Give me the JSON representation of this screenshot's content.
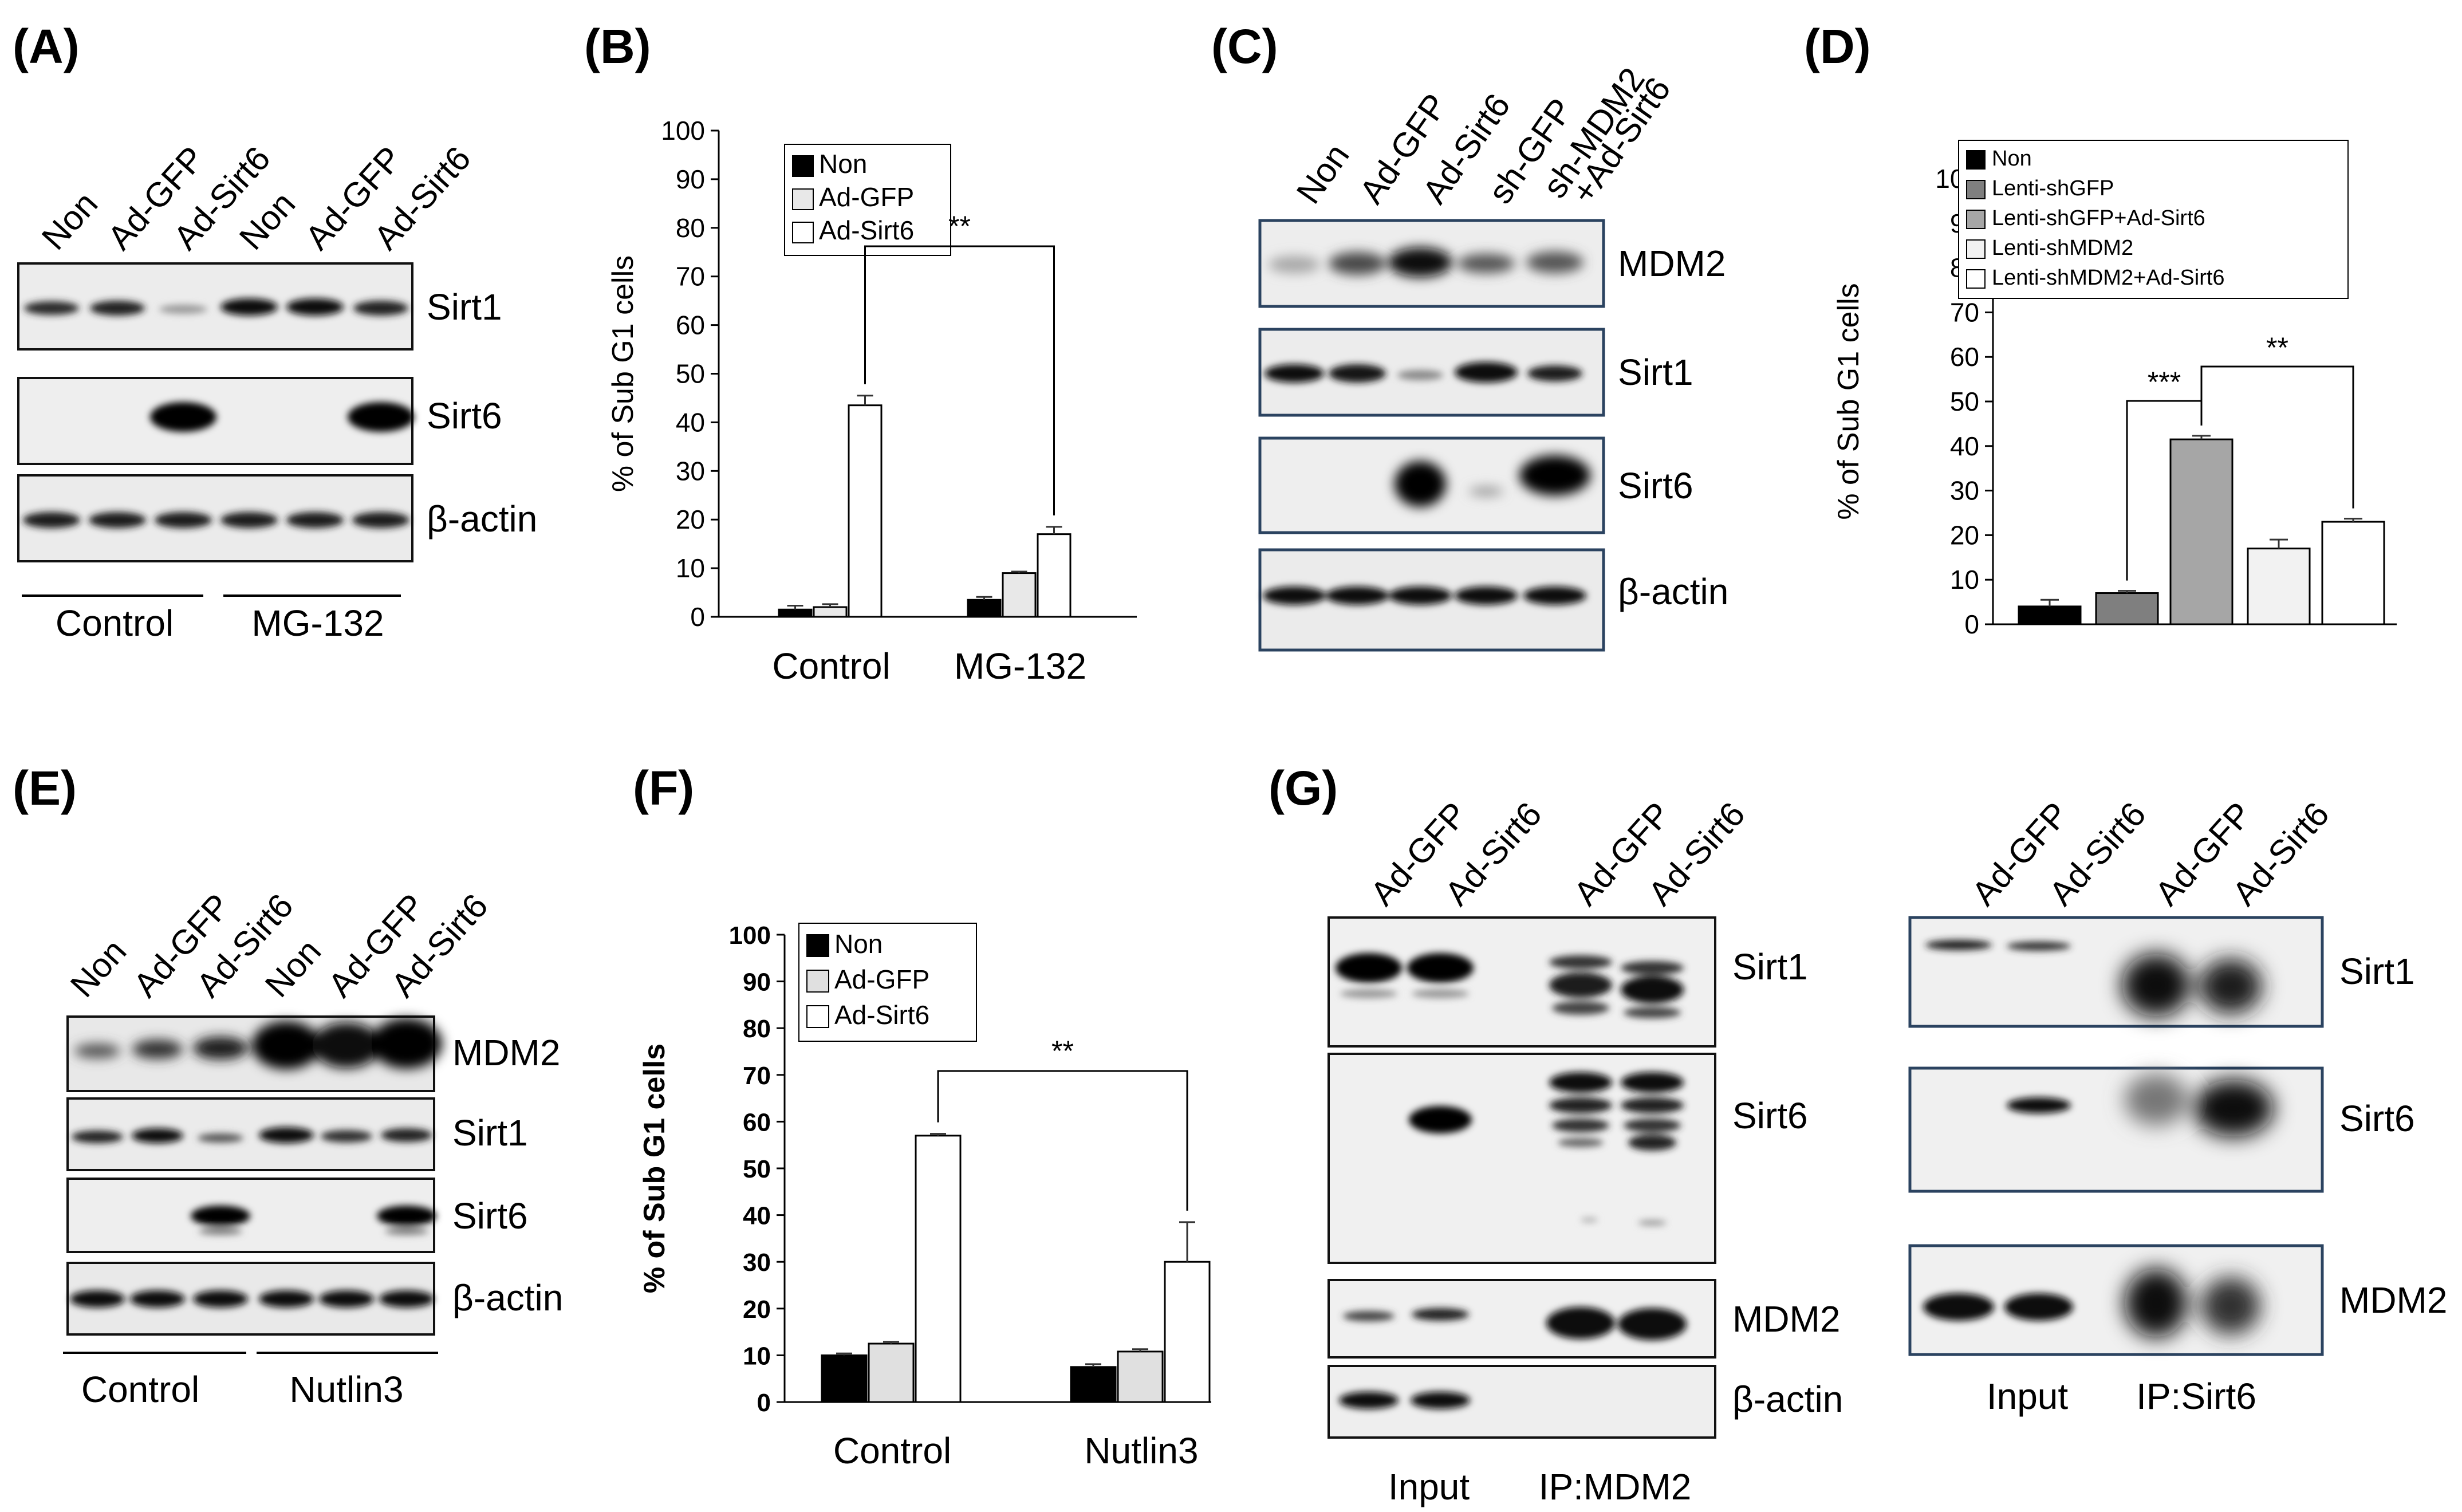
{
  "panels": {
    "A": {
      "label": "(A)",
      "lanes": [
        "Non",
        "Ad-GFP",
        "Ad-Sirt6",
        "Non",
        "Ad-GFP",
        "Ad-Sirt6"
      ],
      "blots": [
        "Sirt1",
        "Sirt6",
        "β-actin"
      ],
      "groups": [
        "Control",
        "MG-132"
      ]
    },
    "B": {
      "label": "(B)"
    },
    "C": {
      "label": "(C)",
      "lanes": [
        "Non",
        "Ad-GFP",
        "Ad-Sirt6",
        "sh-GFP",
        "sh-MDM2",
        "+Ad-Sirt6"
      ],
      "blots": [
        "MDM2",
        "Sirt1",
        "Sirt6",
        "β-actin"
      ]
    },
    "D": {
      "label": "(D)"
    },
    "E": {
      "label": "(E)",
      "lanes": [
        "Non",
        "Ad-GFP",
        "Ad-Sirt6",
        "Non",
        "Ad-GFP",
        "Ad-Sirt6"
      ],
      "blots": [
        "MDM2",
        "Sirt1",
        "Sirt6",
        "β-actin"
      ],
      "groups": [
        "Control",
        "Nutlin3"
      ]
    },
    "F": {
      "label": "(F)"
    },
    "G": {
      "label": "(G)",
      "left_lanes": [
        "Ad-GFP",
        "Ad-Sirt6",
        "Ad-GFP",
        "Ad-Sirt6"
      ],
      "left_blots": [
        "Sirt1",
        "Sirt6",
        "MDM2",
        "β-actin"
      ],
      "left_groups": [
        "Input",
        "IP:MDM2"
      ],
      "right_lanes": [
        "Ad-GFP",
        "Ad-Sirt6",
        "Ad-GFP",
        "Ad-Sirt6"
      ],
      "right_blots": [
        "Sirt1",
        "Sirt6",
        "MDM2"
      ],
      "right_groups": [
        "Input",
        "IP:Sirt6"
      ]
    }
  },
  "chart_data": [
    {
      "panel": "B",
      "type": "bar",
      "categories": [
        "Control",
        "MG-132"
      ],
      "series": [
        {
          "name": "Non",
          "values": [
            1.5,
            3.5
          ],
          "errors": [
            0.8,
            0.6
          ],
          "color": "#000000"
        },
        {
          "name": "Ad-GFP",
          "values": [
            2.0,
            9.0
          ],
          "errors": [
            0.6,
            0.3
          ],
          "color": "#e8e8e8"
        },
        {
          "name": "Ad-Sirt6",
          "values": [
            43.5,
            17.0
          ],
          "errors": [
            2.0,
            1.5
          ],
          "color": "#ffffff"
        }
      ],
      "ylabel": "% of Sub G1 cells",
      "ylim": [
        0,
        100
      ],
      "yticks": [
        0,
        10,
        20,
        30,
        40,
        50,
        60,
        70,
        80,
        90,
        100
      ],
      "significance": "**",
      "legend": "top-left"
    },
    {
      "panel": "D",
      "type": "bar",
      "categories": [
        "Non",
        "Lenti-shGFP",
        "Lenti-shGFP+Ad-Sirt6",
        "Lenti-shMDM2",
        "Lenti-shMDM2+Ad-Sirt6"
      ],
      "values": [
        4.0,
        7.0,
        41.5,
        17.0,
        23.0
      ],
      "errors": [
        1.5,
        0.5,
        0.8,
        2.0,
        0.7
      ],
      "colors": [
        "#000000",
        "#7f7f7f",
        "#a6a6a6",
        "#f2f2f2",
        "#ffffff"
      ],
      "ylabel": "% of Sub G1 cells",
      "ylim": [
        0,
        100
      ],
      "yticks": [
        0,
        10,
        20,
        30,
        40,
        50,
        60,
        70,
        80,
        90,
        100
      ],
      "significance": [
        "***",
        "**"
      ],
      "legend": "top"
    },
    {
      "panel": "F",
      "type": "bar",
      "categories": [
        "Control",
        "Nutlin3"
      ],
      "series": [
        {
          "name": "Non",
          "values": [
            10.0,
            7.5
          ],
          "errors": [
            0.4,
            0.6
          ],
          "color": "#000000"
        },
        {
          "name": "Ad-GFP",
          "values": [
            12.5,
            10.8
          ],
          "errors": [
            0.4,
            0.5
          ],
          "color": "#e0e0e0"
        },
        {
          "name": "Ad-Sirt6",
          "values": [
            57.0,
            30.0
          ],
          "errors": [
            0.4,
            8.5
          ],
          "color": "#ffffff"
        }
      ],
      "ylabel": "% of Sub G1 cells",
      "ylim": [
        0,
        100
      ],
      "yticks": [
        0,
        10,
        20,
        30,
        40,
        50,
        60,
        70,
        80,
        90,
        100
      ],
      "significance": "**",
      "legend": "top-left"
    }
  ]
}
